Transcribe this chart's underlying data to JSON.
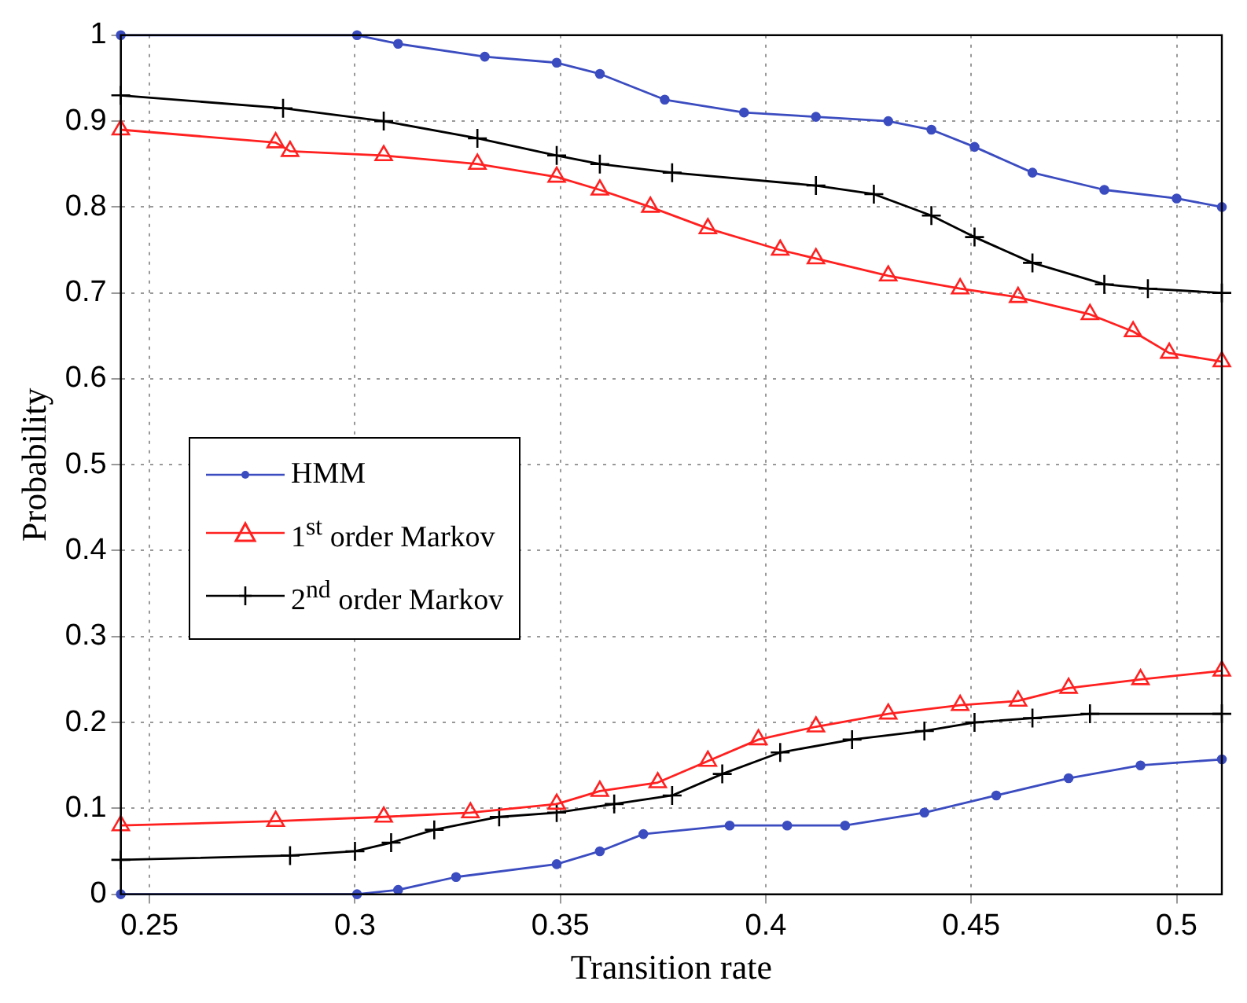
{
  "chart_data": {
    "type": "line",
    "xlabel": "Transition rate",
    "ylabel": "Probability",
    "xlim": [
      0.243,
      0.511
    ],
    "xticks": [
      0.25,
      0.3,
      0.35,
      0.4,
      0.45,
      0.5
    ],
    "ylim": [
      0,
      1
    ],
    "yticks": [
      0,
      0.1,
      0.2,
      0.3,
      0.4,
      0.5,
      0.6,
      0.7,
      0.8,
      0.9,
      1
    ],
    "grid": true,
    "legend": "left",
    "line_style": "solid",
    "series": [
      {
        "name": "HMM",
        "color": "#3b4cc0",
        "marker": "circle",
        "x": [
          0.243,
          0.3005,
          0.3105,
          0.3316,
          0.3491,
          0.3596,
          0.3754,
          0.3947,
          0.4122,
          0.4298,
          0.4403,
          0.4508,
          0.4649,
          0.4824,
          0.5,
          0.511
        ],
        "values": [
          1,
          1,
          0.99,
          0.975,
          0.968,
          0.955,
          0.925,
          0.91,
          0.905,
          0.9,
          0.89,
          0.87,
          0.84,
          0.82,
          0.81,
          0.8
        ]
      },
      {
        "name": "1$^{st}$ order Markov",
        "color": "#ff2020",
        "marker": "triangle",
        "x": [
          0.243,
          0.2807,
          0.2842,
          0.307,
          0.3298,
          0.3491,
          0.3596,
          0.3719,
          0.3859,
          0.4035,
          0.4122,
          0.4298,
          0.4473,
          0.4614,
          0.4789,
          0.4894,
          0.4982,
          0.511
        ],
        "values": [
          0.89,
          0.875,
          0.865,
          0.86,
          0.85,
          0.835,
          0.82,
          0.8,
          0.775,
          0.75,
          0.74,
          0.72,
          0.705,
          0.695,
          0.675,
          0.655,
          0.63,
          0.62
        ]
      },
      {
        "name": "2$^{nd}$ order Markov",
        "color": "#000000",
        "marker": "cross",
        "x": [
          0.243,
          0.2825,
          0.307,
          0.3298,
          0.3491,
          0.3596,
          0.3772,
          0.4122,
          0.4263,
          0.4403,
          0.4508,
          0.4649,
          0.4824,
          0.493,
          0.511
        ],
        "values": [
          0.93,
          0.915,
          0.9,
          0.88,
          0.86,
          0.85,
          0.84,
          0.825,
          0.815,
          0.79,
          0.765,
          0.735,
          0.71,
          0.705,
          0.7
        ]
      },
      {
        "color": "#3b4cc0",
        "marker": "circle",
        "x": [
          0.243,
          0.3005,
          0.3105,
          0.3246,
          0.3491,
          0.3596,
          0.3702,
          0.3912,
          0.4052,
          0.4193,
          0.4386,
          0.4561,
          0.4737,
          0.4912,
          0.511
        ],
        "values": [
          0,
          0,
          0.005,
          0.02,
          0.035,
          0.05,
          0.07,
          0.08,
          0.08,
          0.08,
          0.095,
          0.115,
          0.135,
          0.15,
          0.157
        ]
      },
      {
        "color": "#ff2020",
        "marker": "triangle",
        "x": [
          0.243,
          0.2807,
          0.307,
          0.3281,
          0.3491,
          0.3596,
          0.3737,
          0.3859,
          0.3982,
          0.4122,
          0.4298,
          0.4473,
          0.4614,
          0.4737,
          0.4912,
          0.511
        ],
        "values": [
          0.08,
          0.085,
          0.09,
          0.095,
          0.105,
          0.12,
          0.13,
          0.155,
          0.18,
          0.195,
          0.21,
          0.22,
          0.225,
          0.24,
          0.25,
          0.26
        ]
      },
      {
        "color": "#000000",
        "marker": "cross",
        "x": [
          0.243,
          0.2842,
          0.3,
          0.3088,
          0.3193,
          0.3351,
          0.3491,
          0.3631,
          0.3772,
          0.3894,
          0.4035,
          0.421,
          0.4386,
          0.4508,
          0.4649,
          0.4789,
          0.511
        ],
        "values": [
          0.04,
          0.045,
          0.05,
          0.06,
          0.075,
          0.09,
          0.095,
          0.105,
          0.115,
          0.14,
          0.165,
          0.18,
          0.19,
          0.2,
          0.205,
          0.21,
          0.21
        ]
      }
    ]
  }
}
